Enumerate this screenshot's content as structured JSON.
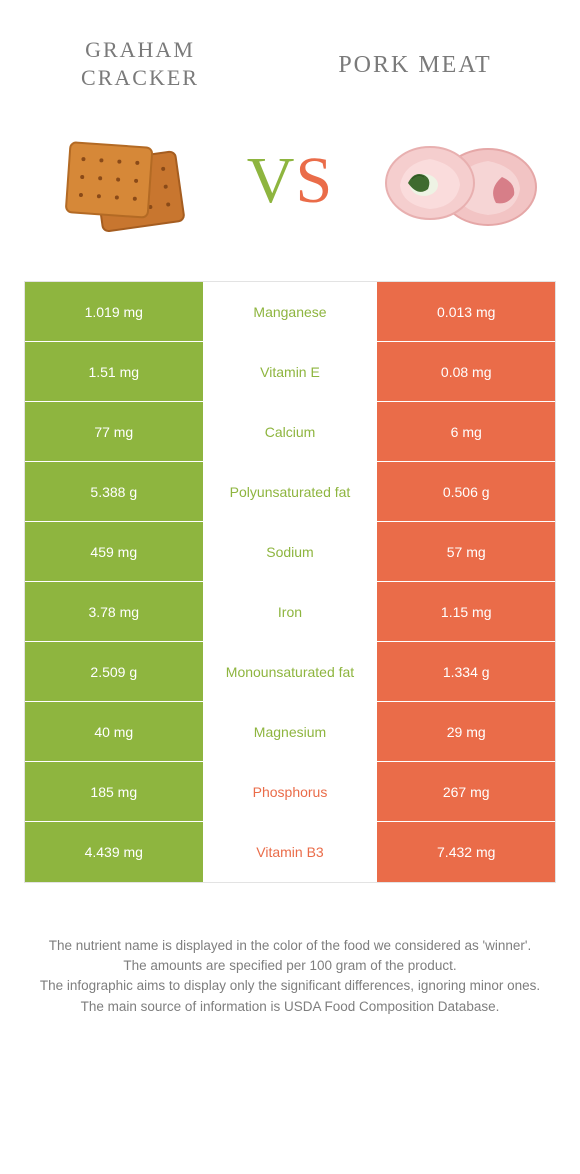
{
  "colors": {
    "green": "#8eb53f",
    "orange": "#ea6c49",
    "gray": "#8b8b8b",
    "title_gray": "#7a7a7a"
  },
  "header": {
    "left_title": "GRAHAM CRACKER",
    "right_title": "PORK MEAT"
  },
  "vs": {
    "v": "V",
    "s": "S"
  },
  "table": {
    "rows": [
      {
        "left": "1.019 mg",
        "label": "Manganese",
        "right": "0.013 mg",
        "winner": "left"
      },
      {
        "left": "1.51 mg",
        "label": "Vitamin E",
        "right": "0.08 mg",
        "winner": "left"
      },
      {
        "left": "77 mg",
        "label": "Calcium",
        "right": "6 mg",
        "winner": "left"
      },
      {
        "left": "5.388 g",
        "label": "Polyunsaturated fat",
        "right": "0.506 g",
        "winner": "left"
      },
      {
        "left": "459 mg",
        "label": "Sodium",
        "right": "57 mg",
        "winner": "left"
      },
      {
        "left": "3.78 mg",
        "label": "Iron",
        "right": "1.15 mg",
        "winner": "left"
      },
      {
        "left": "2.509 g",
        "label": "Monounsaturated fat",
        "right": "1.334 g",
        "winner": "left"
      },
      {
        "left": "40 mg",
        "label": "Magnesium",
        "right": "29 mg",
        "winner": "left"
      },
      {
        "left": "185 mg",
        "label": "Phosphorus",
        "right": "267 mg",
        "winner": "right"
      },
      {
        "left": "4.439 mg",
        "label": "Vitamin B3",
        "right": "7.432 mg",
        "winner": "right"
      }
    ]
  },
  "footer": {
    "p1": "The nutrient name is displayed in the color of the food we considered as 'winner'.",
    "p2": "The amounts are specified per 100 gram of the product.",
    "p3": "The infographic aims to display only the significant differences, ignoring minor ones.",
    "p4": "The main source of information is USDA Food Composition Database."
  }
}
